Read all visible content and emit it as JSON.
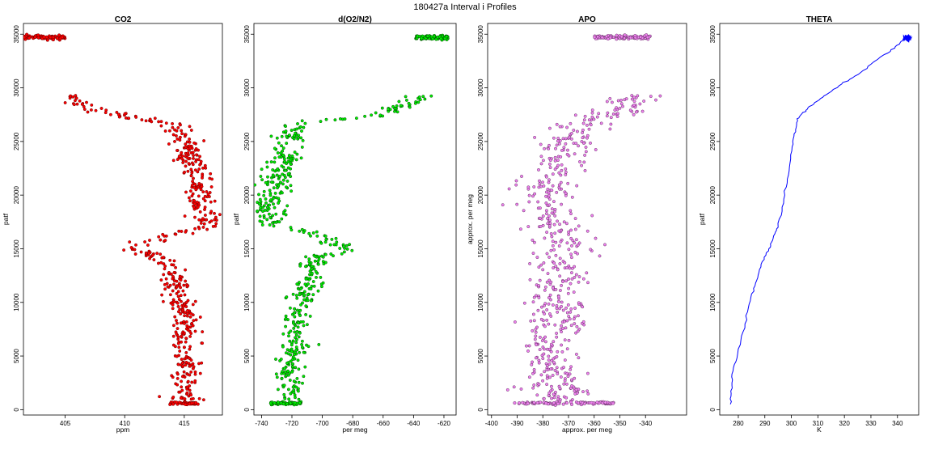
{
  "title": "180427a   Interval i Profiles",
  "chart_data": [
    {
      "type": "scatter",
      "title": "CO2",
      "xlabel": "ppm",
      "ylabel": "patf",
      "xlim": [
        401.5,
        418.2
      ],
      "ylim": [
        -500,
        36000
      ],
      "xticks": [
        405,
        410,
        415
      ],
      "yticks": [
        0,
        5000,
        10000,
        15000,
        20000,
        25000,
        30000,
        35000
      ],
      "color": "#ff0000",
      "edge": "#6b0000",
      "clusters": [
        {
          "y": 34700,
          "x": 403.2,
          "spread_x": 1.8,
          "spread_y": 90,
          "n": 90
        },
        {
          "y": 600,
          "x": 415.0,
          "spread_x": 1.2,
          "spread_y": 60,
          "n": 60
        }
      ],
      "profile": [
        [
          29300,
          405.5
        ],
        [
          28500,
          406.5
        ],
        [
          27800,
          408.2
        ],
        [
          27000,
          411.5
        ],
        [
          26600,
          414.3
        ],
        [
          26000,
          414.7
        ],
        [
          25000,
          415.0
        ],
        [
          24000,
          415.4
        ],
        [
          23000,
          415.6
        ],
        [
          22000,
          415.9
        ],
        [
          21000,
          416.1
        ],
        [
          20000,
          416.3
        ],
        [
          19000,
          416.5
        ],
        [
          18000,
          416.8
        ],
        [
          17200,
          417.0
        ],
        [
          16600,
          415.2
        ],
        [
          16000,
          413.2
        ],
        [
          15300,
          410.8
        ],
        [
          14800,
          411.5
        ],
        [
          14000,
          413.0
        ],
        [
          13000,
          413.8
        ],
        [
          12000,
          414.2
        ],
        [
          11000,
          414.5
        ],
        [
          10000,
          414.7
        ],
        [
          9000,
          415.0
        ],
        [
          8000,
          415.0
        ],
        [
          7000,
          414.9
        ],
        [
          6000,
          415.1
        ],
        [
          5000,
          415.0
        ],
        [
          4000,
          415.1
        ],
        [
          3000,
          415.0
        ],
        [
          2000,
          415.0
        ],
        [
          900,
          415.0
        ]
      ],
      "jitter": 0.6,
      "npoints": 520
    },
    {
      "type": "scatter",
      "title": "d(O2/N2)",
      "xlabel": "per meg",
      "ylabel": "patf",
      "xlim": [
        -745,
        -612
      ],
      "ylim": [
        -500,
        36000
      ],
      "xticks": [
        -740,
        -720,
        -700,
        -680,
        -660,
        -640,
        -620
      ],
      "yticks": [
        0,
        5000,
        10000,
        15000,
        20000,
        25000,
        30000,
        35000
      ],
      "color": "#00ee00",
      "edge": "#004400",
      "clusters": [
        {
          "y": 34700,
          "x": -628,
          "spread_x": 11,
          "spread_y": 90,
          "n": 90
        },
        {
          "y": 600,
          "x": -724,
          "spread_x": 10,
          "spread_y": 60,
          "n": 60
        }
      ],
      "profile": [
        [
          29300,
          -633
        ],
        [
          28500,
          -645
        ],
        [
          27800,
          -655
        ],
        [
          27300,
          -668
        ],
        [
          27000,
          -700
        ],
        [
          26600,
          -715
        ],
        [
          26000,
          -719
        ],
        [
          25000,
          -722
        ],
        [
          24000,
          -725
        ],
        [
          23000,
          -726
        ],
        [
          22000,
          -729
        ],
        [
          21000,
          -730
        ],
        [
          20000,
          -733
        ],
        [
          19000,
          -735
        ],
        [
          18000,
          -737
        ],
        [
          17300,
          -735
        ],
        [
          16600,
          -712
        ],
        [
          16000,
          -700
        ],
        [
          15300,
          -688
        ],
        [
          15000,
          -683
        ],
        [
          14500,
          -697
        ],
        [
          14000,
          -705
        ],
        [
          13000,
          -708
        ],
        [
          12000,
          -710
        ],
        [
          11000,
          -713
        ],
        [
          10000,
          -715
        ],
        [
          9000,
          -717
        ],
        [
          8000,
          -718
        ],
        [
          7000,
          -719
        ],
        [
          6000,
          -718
        ],
        [
          5000,
          -720
        ],
        [
          4000,
          -722
        ],
        [
          3000,
          -721
        ],
        [
          2000,
          -720
        ],
        [
          900,
          -720
        ]
      ],
      "jitter": 5,
      "npoints": 520
    },
    {
      "type": "scatter",
      "title": "APO",
      "xlabel": "approx. per meg",
      "ylabel": "approx. per meg",
      "xlim": [
        -401.5,
        -324
      ],
      "ylim": [
        -500,
        36000
      ],
      "xticks": [
        -400,
        -390,
        -380,
        -370,
        -360,
        -350,
        -340
      ],
      "yticks": [
        0,
        5000,
        10000,
        15000,
        20000,
        25000,
        30000,
        35000
      ],
      "color": "#ee82ee",
      "edge": "#663366",
      "clusters": [
        {
          "y": 34700,
          "x": -349,
          "spread_x": 11,
          "spread_y": 90,
          "n": 110
        },
        {
          "y": 600,
          "x": -372,
          "spread_x": 20,
          "spread_y": 60,
          "n": 90
        }
      ],
      "profile": [
        [
          29300,
          -346
        ],
        [
          28500,
          -349
        ],
        [
          27500,
          -352
        ],
        [
          27000,
          -366
        ],
        [
          26000,
          -370
        ],
        [
          25000,
          -371
        ],
        [
          24000,
          -373
        ],
        [
          23000,
          -374
        ],
        [
          22000,
          -375
        ],
        [
          21000,
          -377
        ],
        [
          20000,
          -378
        ],
        [
          19000,
          -378
        ],
        [
          18000,
          -377
        ],
        [
          17000,
          -375
        ],
        [
          16000,
          -372
        ],
        [
          15000,
          -370
        ],
        [
          14000,
          -372
        ],
        [
          13000,
          -373
        ],
        [
          12000,
          -374
        ],
        [
          11000,
          -375
        ],
        [
          10000,
          -375
        ],
        [
          9000,
          -376
        ],
        [
          8000,
          -376
        ],
        [
          7000,
          -376
        ],
        [
          6000,
          -376
        ],
        [
          5000,
          -377
        ],
        [
          4000,
          -377
        ],
        [
          3000,
          -376
        ],
        [
          2000,
          -374
        ],
        [
          900,
          -372
        ]
      ],
      "jitter": 6,
      "npoints": 560
    },
    {
      "type": "line",
      "title": "THETA",
      "xlabel": "K",
      "ylabel": "patf",
      "xlim": [
        273,
        348
      ],
      "ylim": [
        -500,
        36000
      ],
      "xticks": [
        280,
        290,
        300,
        310,
        320,
        330,
        340
      ],
      "yticks": [
        0,
        5000,
        10000,
        15000,
        20000,
        25000,
        30000,
        35000
      ],
      "color": "#0000ff",
      "series": [
        {
          "x": [
            277.0,
            277.3,
            277.6,
            278.0,
            279.5,
            281.0,
            282.5,
            283.8,
            285.0,
            286.5,
            287.8,
            289.0,
            290.5,
            291.5,
            292.5,
            293.8,
            295.0,
            296.5,
            297.5,
            298.5,
            299.5,
            300.3,
            301.0,
            301.8,
            302.3,
            303.0,
            304.0,
            306.0,
            308.5,
            311.0,
            314.0,
            318.0,
            322.0,
            326.0,
            330.0,
            335.0,
            339.0,
            341.0,
            342.5
          ],
          "y": [
            500,
            1500,
            2500,
            3600,
            4800,
            6500,
            8000,
            9500,
            10800,
            11800,
            12800,
            13800,
            14600,
            15000,
            15600,
            16400,
            17000,
            18500,
            20000,
            21500,
            23000,
            24500,
            25500,
            26300,
            26900,
            27300,
            27600,
            28000,
            28500,
            29000,
            29500,
            30200,
            30800,
            31400,
            32200,
            33100,
            33700,
            34200,
            34650
          ]
        }
      ],
      "tail": {
        "y": 34650,
        "x": 343.8,
        "spread_x": 1.6,
        "spread_y": 120,
        "n": 60
      }
    }
  ]
}
